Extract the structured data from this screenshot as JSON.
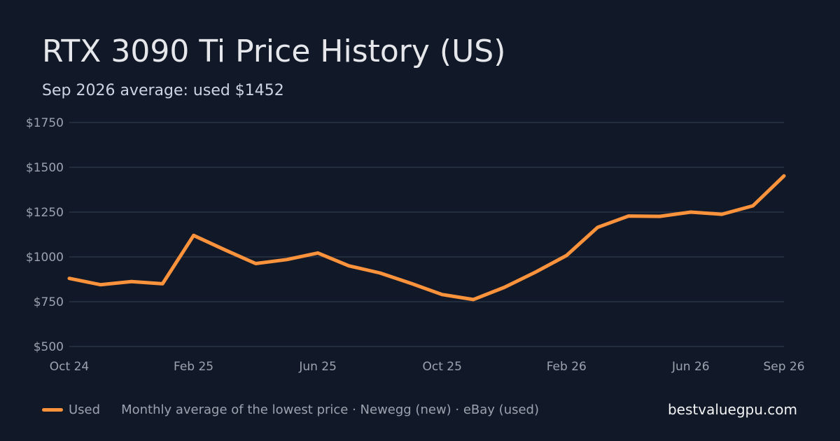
{
  "header": {
    "title": "RTX 3090 Ti Price History (US)",
    "subtitle": "Sep 2026 average: used $1452"
  },
  "footer": {
    "legend_label": "Used",
    "source_note": "Monthly average of the lowest price · Newegg (new) · eBay (used)",
    "site": "bestvaluegpu.com"
  },
  "colors": {
    "background": "#111827",
    "line": "#fb923c",
    "grid": "#273244"
  },
  "chart_data": {
    "type": "line",
    "title": "RTX 3090 Ti Price History (US)",
    "subtitle": "Sep 2026 average: used $1452",
    "x": [
      "2024-10",
      "2024-11",
      "2024-12",
      "2025-01",
      "2025-02",
      "2025-03",
      "2025-04",
      "2025-05",
      "2025-06",
      "2025-07",
      "2025-08",
      "2025-09",
      "2025-10",
      "2025-11",
      "2025-12",
      "2026-01",
      "2026-02",
      "2026-03",
      "2026-04",
      "2026-05",
      "2026-06",
      "2026-07",
      "2026-08",
      "2026-09"
    ],
    "x_tick_labels": [
      "Oct 24",
      "Feb 25",
      "Jun 25",
      "Oct 25",
      "Feb 26",
      "Jun 26",
      "Sep 26"
    ],
    "x_tick_index": [
      0,
      4,
      8,
      12,
      16,
      20,
      23
    ],
    "y_ticks": [
      500,
      750,
      1000,
      1250,
      1500,
      1750
    ],
    "y_tick_labels": [
      "$500",
      "$750",
      "$1000",
      "$1250",
      "$1500",
      "$1750"
    ],
    "ylim": [
      500,
      1750
    ],
    "grid": true,
    "legend_position": "bottom-left",
    "series": [
      {
        "name": "Used",
        "color": "#fb923c",
        "values": [
          880,
          845,
          862,
          850,
          1120,
          1040,
          963,
          985,
          1022,
          950,
          910,
          852,
          790,
          762,
          830,
          915,
          1008,
          1165,
          1228,
          1226,
          1250,
          1238,
          1285,
          1452
        ]
      }
    ]
  }
}
